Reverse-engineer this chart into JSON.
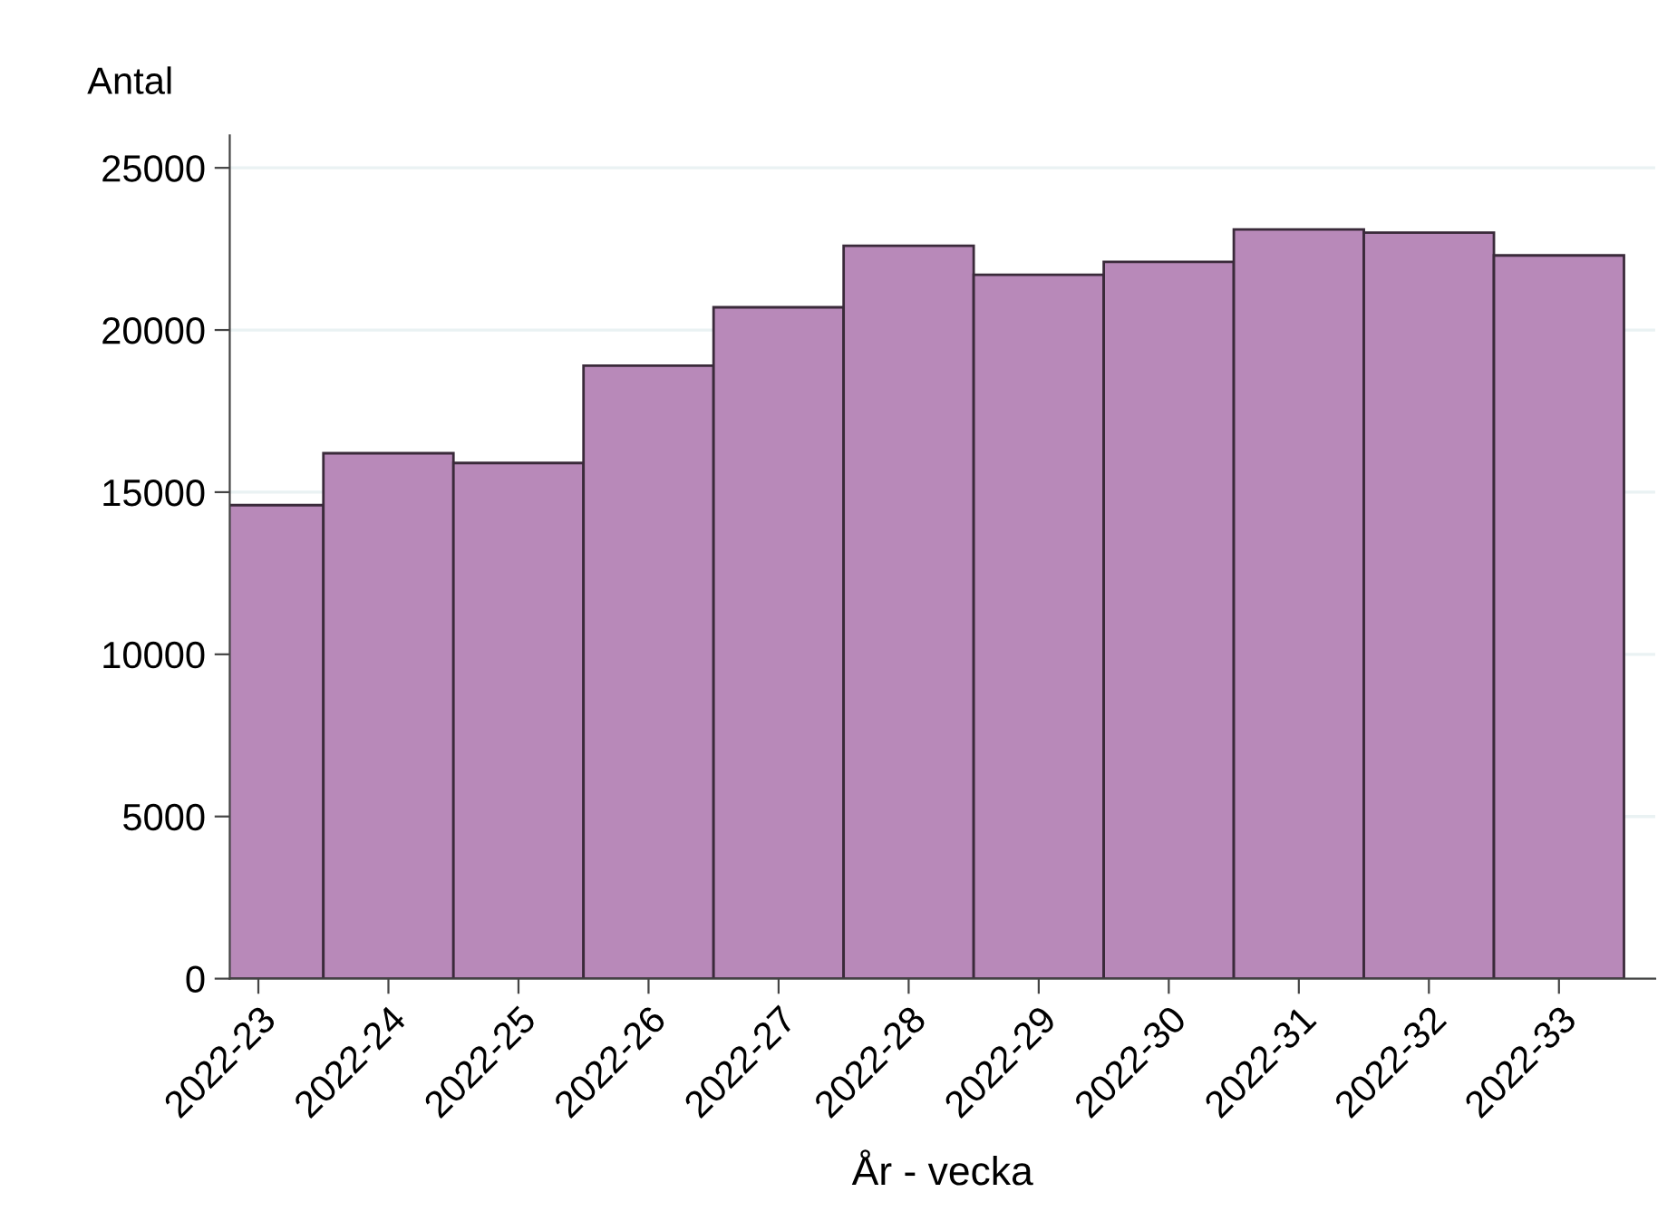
{
  "chart_data": {
    "type": "bar",
    "xlabel": "År - vecka",
    "ylabel": "Antal",
    "categories": [
      "2022-23",
      "2022-24",
      "2022-25",
      "2022-26",
      "2022-27",
      "2022-28",
      "2022-29",
      "2022-30",
      "2022-31",
      "2022-32",
      "2022-33"
    ],
    "values": [
      14600,
      16200,
      15900,
      18900,
      20700,
      22600,
      21700,
      22100,
      23100,
      23000,
      22300
    ],
    "color": "#b889b9",
    "ylim": [
      0,
      26000
    ],
    "yticks": [
      0,
      5000,
      10000,
      15000,
      20000,
      25000
    ],
    "grid": "y",
    "legend": false
  }
}
